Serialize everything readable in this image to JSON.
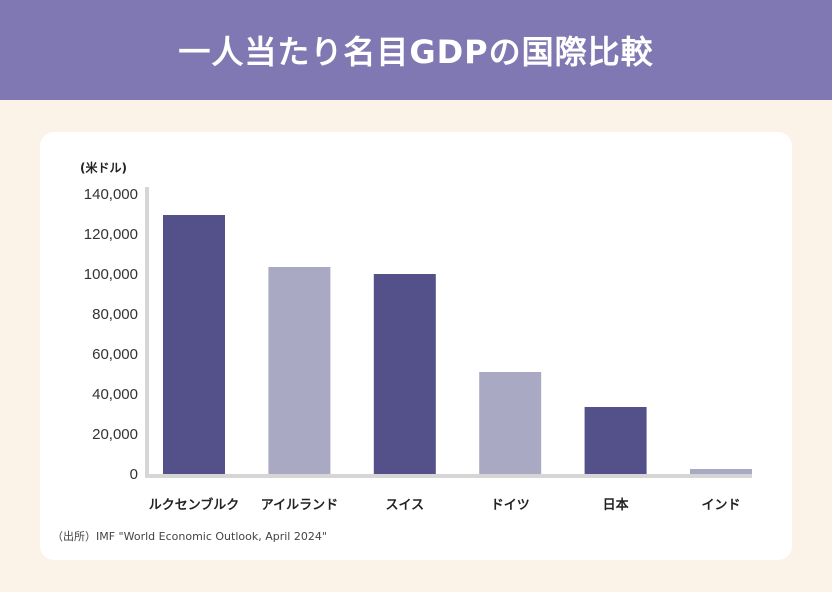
{
  "header": {
    "title": "一人当たり名目GDPの国際比較"
  },
  "chart_data": {
    "type": "bar",
    "title": "一人当たり名目GDPの国際比較",
    "ylabel": "(米ドル)",
    "xlabel": "",
    "ylim": [
      0,
      140000
    ],
    "yticks": [
      0,
      20000,
      40000,
      60000,
      80000,
      100000,
      120000,
      140000
    ],
    "ytick_labels": [
      "0",
      "20,000",
      "40,000",
      "60,000",
      "80,000",
      "100,000",
      "120,000",
      "140,000"
    ],
    "categories": [
      "ルクセンブルク",
      "アイルランド",
      "スイス",
      "ドイツ",
      "日本",
      "インド"
    ],
    "values": [
      129500,
      103500,
      100000,
      51000,
      33500,
      2500
    ],
    "bar_colors": [
      "#53508a",
      "#aaa9c3",
      "#53508a",
      "#aaa9c3",
      "#53508a",
      "#aaa9c3"
    ],
    "grid": false,
    "source": "（出所）IMF \"World Economic Outlook, April 2024\""
  }
}
